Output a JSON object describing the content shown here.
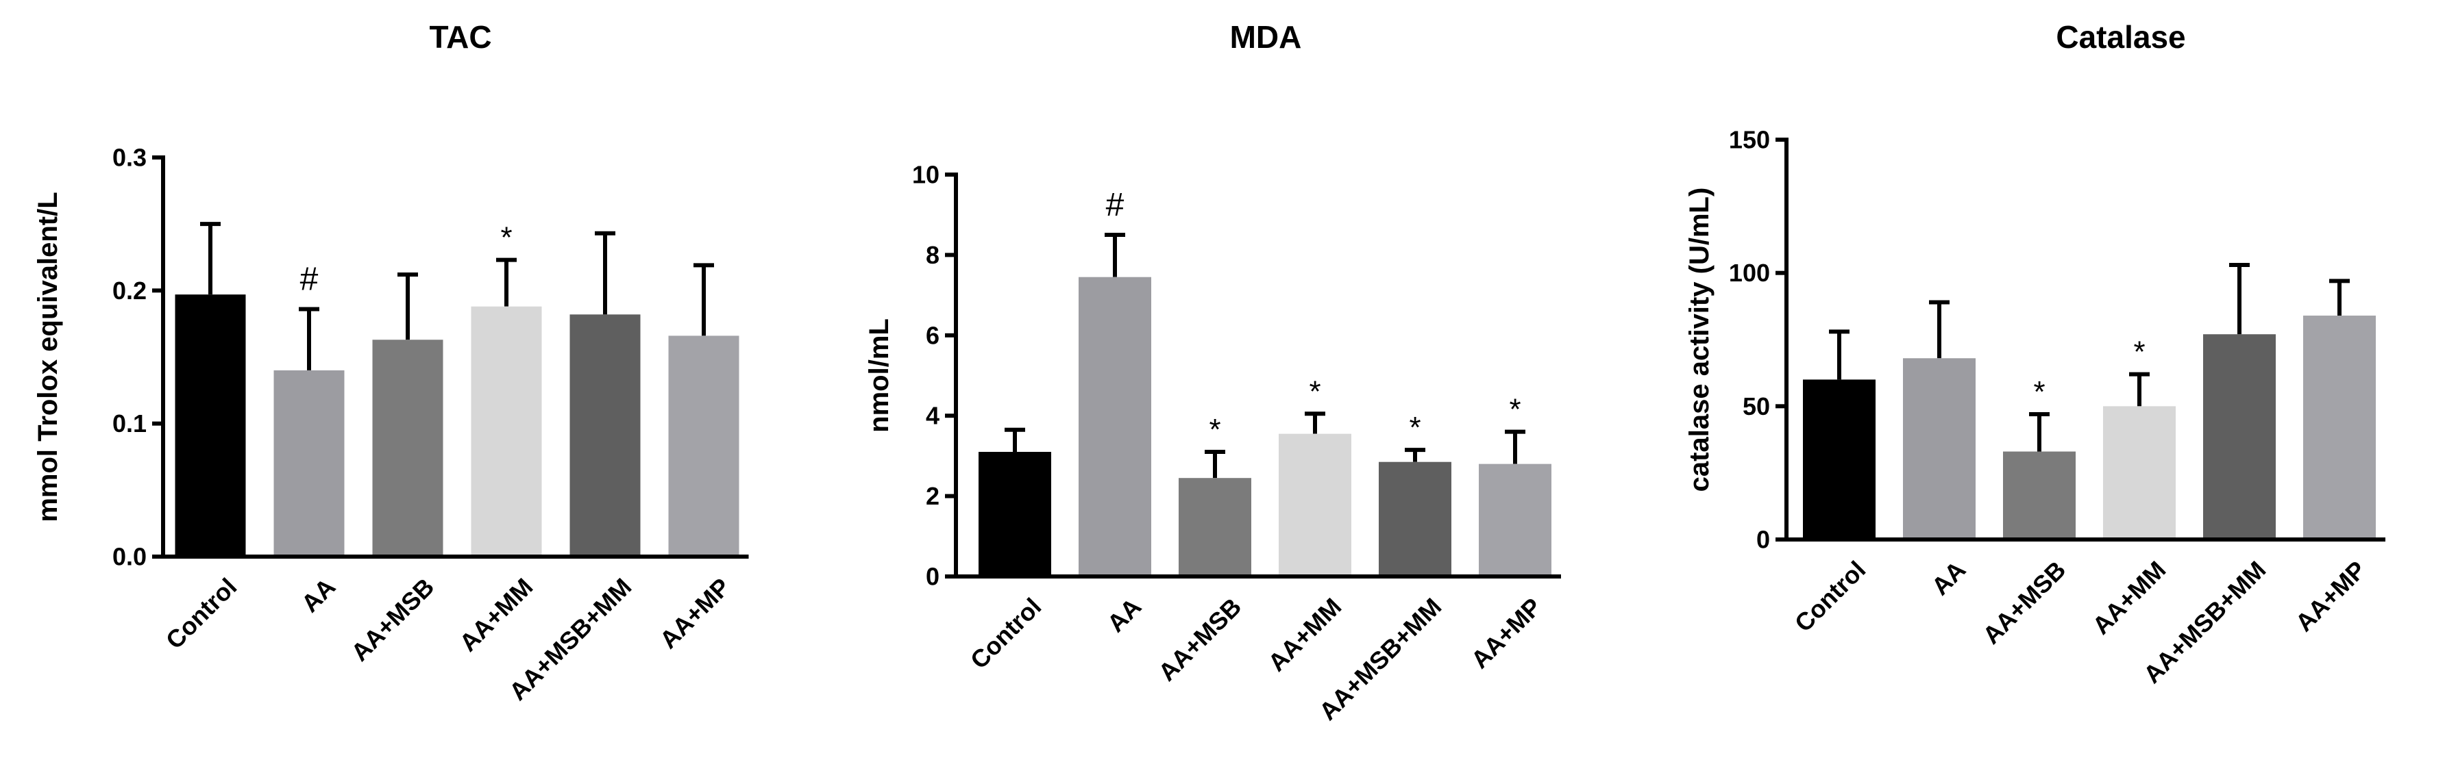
{
  "chart_data": [
    {
      "type": "bar",
      "title": "TAC",
      "ylabel": "mmol Trolox equivalent/L",
      "xlabel": "",
      "categories": [
        "Control",
        "AA",
        "AA+MSB",
        "AA+MM",
        "AA+MSB+MM",
        "AA+MP"
      ],
      "values": [
        0.197,
        0.14,
        0.163,
        0.188,
        0.182,
        0.166
      ],
      "errors": [
        0.053,
        0.046,
        0.049,
        0.035,
        0.061,
        0.053
      ],
      "annotations": [
        "",
        "#",
        "",
        "*",
        "",
        ""
      ],
      "ylim": [
        0,
        0.3
      ],
      "yticks": [
        0.0,
        0.1,
        0.2,
        0.3
      ],
      "ytick_labels": [
        "0.0",
        "0.1",
        "0.2",
        "0.3"
      ],
      "colors": [
        "#000000",
        "#9c9ca1",
        "#7b7b7b",
        "#d7d7d7",
        "#5f5f5f",
        "#a3a3a8"
      ],
      "grid": false,
      "legend": "none"
    },
    {
      "type": "bar",
      "title": "MDA",
      "ylabel": "nmol/mL",
      "xlabel": "",
      "categories": [
        "Control",
        "AA",
        "AA+MSB",
        "AA+MM",
        "AA+MSB+MM",
        "AA+MP"
      ],
      "values": [
        3.1,
        7.45,
        2.45,
        3.55,
        2.85,
        2.8
      ],
      "errors": [
        0.55,
        1.05,
        0.65,
        0.5,
        0.3,
        0.8
      ],
      "annotations": [
        "",
        "#",
        "*",
        "*",
        "*",
        "*"
      ],
      "ylim": [
        0,
        10
      ],
      "yticks": [
        0,
        2,
        4,
        6,
        8,
        10
      ],
      "ytick_labels": [
        "0",
        "2",
        "4",
        "6",
        "8",
        "10"
      ],
      "colors": [
        "#000000",
        "#9c9ca1",
        "#7b7b7b",
        "#d7d7d7",
        "#5f5f5f",
        "#a3a3a8"
      ],
      "grid": false,
      "legend": "none"
    },
    {
      "type": "bar",
      "title": "Catalase",
      "ylabel": "catalase activity (U/mL)",
      "xlabel": "",
      "categories": [
        "Control",
        "AA",
        "AA+MSB",
        "AA+MM",
        "AA+MSB+MM",
        "AA+MP"
      ],
      "values": [
        60,
        68,
        33,
        50,
        77,
        84
      ],
      "errors": [
        18,
        21,
        14,
        12,
        26,
        13
      ],
      "annotations": [
        "",
        "",
        "*",
        "*",
        "",
        ""
      ],
      "ylim": [
        0,
        150
      ],
      "yticks": [
        0,
        50,
        100,
        150
      ],
      "ytick_labels": [
        "0",
        "50",
        "100",
        "150"
      ],
      "colors": [
        "#000000",
        "#9c9ca1",
        "#7b7b7b",
        "#d7d7d7",
        "#5f5f5f",
        "#a3a3a8"
      ],
      "grid": false,
      "legend": "none"
    }
  ]
}
